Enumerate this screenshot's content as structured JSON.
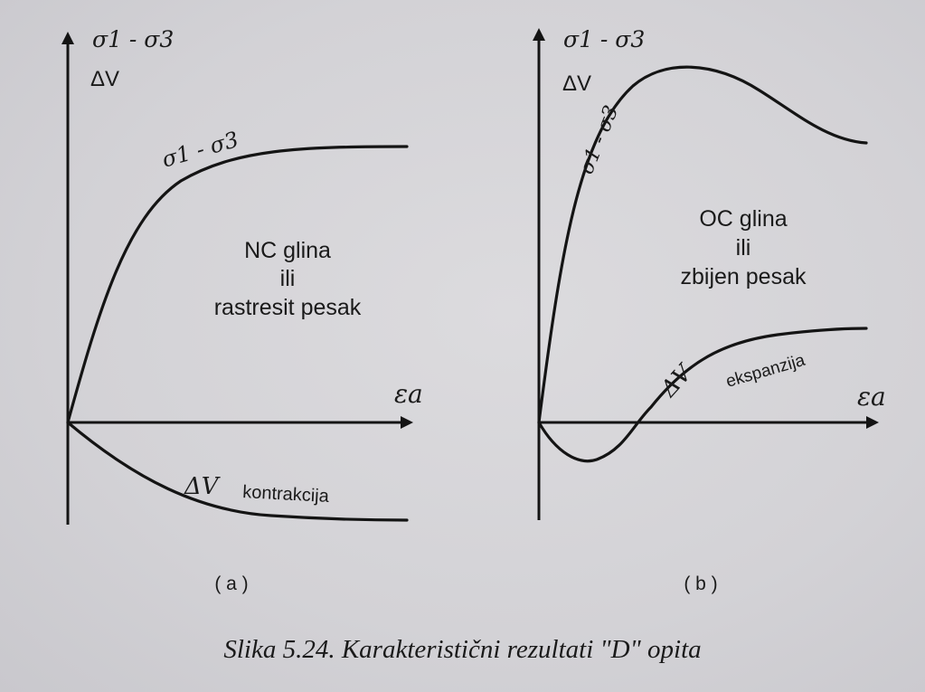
{
  "panel_a": {
    "y_axis_label_1": "σ1 - σ3",
    "y_axis_label_2": "ΔV",
    "x_axis_label": "εa",
    "curve_label_stress": "σ1 - σ3",
    "curve_label_volume": "ΔV",
    "volume_behavior": "kontrakcija",
    "material_line1": "NC glina",
    "material_line2": "ili",
    "material_line3": "rastresit pesak",
    "panel_label": "( a )"
  },
  "panel_b": {
    "y_axis_label_1": "σ1 - σ3",
    "y_axis_label_2": "ΔV",
    "x_axis_label": "εa",
    "curve_label_stress": "σ1 - σ3",
    "curve_label_volume": "ΔV",
    "volume_behavior": "ekspanzija",
    "material_line1": "OC glina",
    "material_line2": "ili",
    "material_line3": "zbijen pesak",
    "panel_label": "( b )"
  },
  "caption": "Slika 5.24. Karakteristični rezultati \"D\" opita"
}
